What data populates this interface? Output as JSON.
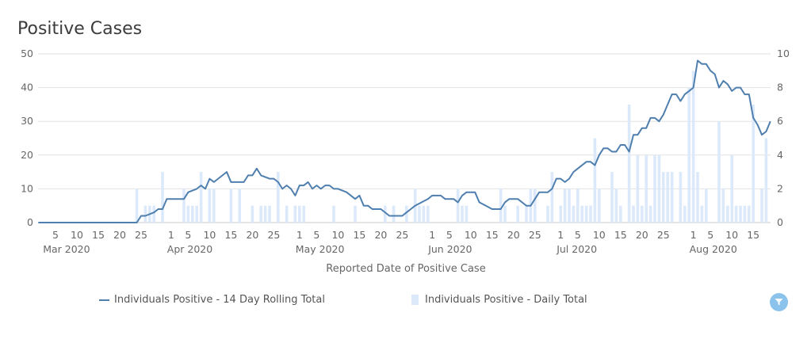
{
  "title": "Positive Cases",
  "filter_icon": "filter-icon",
  "chart_data": {
    "type": "bar+line",
    "title": "Positive Cases",
    "xlabel": "Reported Date of Positive Case",
    "ylabel_left": "",
    "ylabel_right": "",
    "x_range": [
      "2020-03-01",
      "2020-08-19"
    ],
    "ylim_left": [
      0,
      50
    ],
    "ylim_right": [
      0,
      10
    ],
    "left_ticks": [
      "0",
      "10",
      "20",
      "30",
      "40",
      "50"
    ],
    "right_ticks": [
      "0",
      "2",
      "4",
      "6",
      "8",
      "10"
    ],
    "x_ticks": [
      {
        "date": "2020-03-05",
        "label": "5"
      },
      {
        "date": "2020-03-10",
        "label": "10"
      },
      {
        "date": "2020-03-15",
        "label": "15"
      },
      {
        "date": "2020-03-20",
        "label": "20"
      },
      {
        "date": "2020-03-25",
        "label": "25"
      },
      {
        "date": "2020-04-01",
        "label": "1"
      },
      {
        "date": "2020-04-05",
        "label": "5"
      },
      {
        "date": "2020-04-10",
        "label": "10"
      },
      {
        "date": "2020-04-15",
        "label": "15"
      },
      {
        "date": "2020-04-20",
        "label": "20"
      },
      {
        "date": "2020-04-25",
        "label": "25"
      },
      {
        "date": "2020-05-01",
        "label": "1"
      },
      {
        "date": "2020-05-05",
        "label": "5"
      },
      {
        "date": "2020-05-10",
        "label": "10"
      },
      {
        "date": "2020-05-15",
        "label": "15"
      },
      {
        "date": "2020-05-20",
        "label": "20"
      },
      {
        "date": "2020-05-25",
        "label": "25"
      },
      {
        "date": "2020-06-01",
        "label": "1"
      },
      {
        "date": "2020-06-05",
        "label": "5"
      },
      {
        "date": "2020-06-10",
        "label": "10"
      },
      {
        "date": "2020-06-15",
        "label": "15"
      },
      {
        "date": "2020-06-20",
        "label": "20"
      },
      {
        "date": "2020-06-25",
        "label": "25"
      },
      {
        "date": "2020-07-01",
        "label": "1"
      },
      {
        "date": "2020-07-05",
        "label": "5"
      },
      {
        "date": "2020-07-10",
        "label": "10"
      },
      {
        "date": "2020-07-15",
        "label": "15"
      },
      {
        "date": "2020-07-20",
        "label": "20"
      },
      {
        "date": "2020-07-25",
        "label": "25"
      },
      {
        "date": "2020-08-01",
        "label": "1"
      },
      {
        "date": "2020-08-05",
        "label": "5"
      },
      {
        "date": "2020-08-10",
        "label": "10"
      },
      {
        "date": "2020-08-15",
        "label": "15"
      }
    ],
    "month_labels": [
      {
        "date": "2020-03-03",
        "label": "Mar 2020"
      },
      {
        "date": "2020-04-01",
        "label": "Apr 2020"
      },
      {
        "date": "2020-05-01",
        "label": "May 2020"
      },
      {
        "date": "2020-06-01",
        "label": "Jun 2020"
      },
      {
        "date": "2020-07-01",
        "label": "Jul 2020"
      },
      {
        "date": "2020-08-01",
        "label": "Aug 2020"
      }
    ],
    "grid": true,
    "legend_position": "bottom",
    "series": [
      {
        "name": "Individuals Positive - 14 Day Rolling Total",
        "type": "line",
        "axis": "left",
        "color": "#4f7fae",
        "points": [
          [
            "2020-03-01",
            0
          ],
          [
            "2020-03-24",
            0
          ],
          [
            "2020-03-25",
            2
          ],
          [
            "2020-03-26",
            2
          ],
          [
            "2020-03-28",
            3
          ],
          [
            "2020-03-29",
            4
          ],
          [
            "2020-03-30",
            4
          ],
          [
            "2020-03-31",
            7
          ],
          [
            "2020-04-04",
            7
          ],
          [
            "2020-04-05",
            9
          ],
          [
            "2020-04-07",
            10
          ],
          [
            "2020-04-08",
            11
          ],
          [
            "2020-04-09",
            10
          ],
          [
            "2020-04-10",
            13
          ],
          [
            "2020-04-11",
            12
          ],
          [
            "2020-04-13",
            14
          ],
          [
            "2020-04-14",
            15
          ],
          [
            "2020-04-15",
            12
          ],
          [
            "2020-04-18",
            12
          ],
          [
            "2020-04-19",
            14
          ],
          [
            "2020-04-20",
            14
          ],
          [
            "2020-04-21",
            16
          ],
          [
            "2020-04-22",
            14
          ],
          [
            "2020-04-24",
            13
          ],
          [
            "2020-04-25",
            13
          ],
          [
            "2020-04-26",
            12
          ],
          [
            "2020-04-27",
            10
          ],
          [
            "2020-04-28",
            11
          ],
          [
            "2020-04-29",
            10
          ],
          [
            "2020-04-30",
            8
          ],
          [
            "2020-05-01",
            11
          ],
          [
            "2020-05-02",
            11
          ],
          [
            "2020-05-03",
            12
          ],
          [
            "2020-05-04",
            10
          ],
          [
            "2020-05-05",
            11
          ],
          [
            "2020-05-06",
            10
          ],
          [
            "2020-05-07",
            11
          ],
          [
            "2020-05-08",
            11
          ],
          [
            "2020-05-09",
            10
          ],
          [
            "2020-05-10",
            10
          ],
          [
            "2020-05-12",
            9
          ],
          [
            "2020-05-13",
            8
          ],
          [
            "2020-05-14",
            7
          ],
          [
            "2020-05-15",
            8
          ],
          [
            "2020-05-16",
            5
          ],
          [
            "2020-05-17",
            5
          ],
          [
            "2020-05-18",
            4
          ],
          [
            "2020-05-20",
            4
          ],
          [
            "2020-05-22",
            2
          ],
          [
            "2020-05-25",
            2
          ],
          [
            "2020-05-26",
            3
          ],
          [
            "2020-05-27",
            4
          ],
          [
            "2020-05-28",
            5
          ],
          [
            "2020-05-31",
            7
          ],
          [
            "2020-06-01",
            8
          ],
          [
            "2020-06-03",
            8
          ],
          [
            "2020-06-04",
            7
          ],
          [
            "2020-06-06",
            7
          ],
          [
            "2020-06-07",
            6
          ],
          [
            "2020-06-08",
            8
          ],
          [
            "2020-06-09",
            9
          ],
          [
            "2020-06-11",
            9
          ],
          [
            "2020-06-12",
            6
          ],
          [
            "2020-06-15",
            4
          ],
          [
            "2020-06-17",
            4
          ],
          [
            "2020-06-18",
            6
          ],
          [
            "2020-06-19",
            7
          ],
          [
            "2020-06-21",
            7
          ],
          [
            "2020-06-23",
            5
          ],
          [
            "2020-06-24",
            5
          ],
          [
            "2020-06-25",
            7
          ],
          [
            "2020-06-26",
            9
          ],
          [
            "2020-06-28",
            9
          ],
          [
            "2020-06-29",
            10
          ],
          [
            "2020-06-30",
            13
          ],
          [
            "2020-07-01",
            13
          ],
          [
            "2020-07-02",
            12
          ],
          [
            "2020-07-03",
            13
          ],
          [
            "2020-07-04",
            15
          ],
          [
            "2020-07-05",
            16
          ],
          [
            "2020-07-07",
            18
          ],
          [
            "2020-07-08",
            18
          ],
          [
            "2020-07-09",
            17
          ],
          [
            "2020-07-10",
            20
          ],
          [
            "2020-07-11",
            22
          ],
          [
            "2020-07-12",
            22
          ],
          [
            "2020-07-13",
            21
          ],
          [
            "2020-07-14",
            21
          ],
          [
            "2020-07-15",
            23
          ],
          [
            "2020-07-16",
            23
          ],
          [
            "2020-07-17",
            21
          ],
          [
            "2020-07-18",
            26
          ],
          [
            "2020-07-19",
            26
          ],
          [
            "2020-07-20",
            28
          ],
          [
            "2020-07-21",
            28
          ],
          [
            "2020-07-22",
            31
          ],
          [
            "2020-07-23",
            31
          ],
          [
            "2020-07-24",
            30
          ],
          [
            "2020-07-25",
            32
          ],
          [
            "2020-07-26",
            35
          ],
          [
            "2020-07-27",
            38
          ],
          [
            "2020-07-28",
            38
          ],
          [
            "2020-07-29",
            36
          ],
          [
            "2020-07-30",
            38
          ],
          [
            "2020-07-31",
            39
          ],
          [
            "2020-08-01",
            40
          ],
          [
            "2020-08-02",
            48
          ],
          [
            "2020-08-03",
            47
          ],
          [
            "2020-08-04",
            47
          ],
          [
            "2020-08-05",
            45
          ],
          [
            "2020-08-06",
            44
          ],
          [
            "2020-08-07",
            40
          ],
          [
            "2020-08-08",
            42
          ],
          [
            "2020-08-09",
            41
          ],
          [
            "2020-08-10",
            39
          ],
          [
            "2020-08-11",
            40
          ],
          [
            "2020-08-12",
            40
          ],
          [
            "2020-08-13",
            38
          ],
          [
            "2020-08-14",
            38
          ],
          [
            "2020-08-15",
            31
          ],
          [
            "2020-08-16",
            29
          ],
          [
            "2020-08-17",
            26
          ],
          [
            "2020-08-18",
            27
          ],
          [
            "2020-08-19",
            30
          ]
        ]
      },
      {
        "name": "Individuals Positive - Daily Total",
        "type": "bar",
        "axis": "right",
        "color": "#dbe9fb",
        "points": [
          [
            "2020-03-24",
            2
          ],
          [
            "2020-03-26",
            1
          ],
          [
            "2020-03-27",
            1
          ],
          [
            "2020-03-28",
            1
          ],
          [
            "2020-03-30",
            3
          ],
          [
            "2020-04-04",
            2
          ],
          [
            "2020-04-05",
            1
          ],
          [
            "2020-04-06",
            1
          ],
          [
            "2020-04-07",
            1
          ],
          [
            "2020-04-08",
            3
          ],
          [
            "2020-04-10",
            2
          ],
          [
            "2020-04-11",
            2
          ],
          [
            "2020-04-15",
            2
          ],
          [
            "2020-04-17",
            2
          ],
          [
            "2020-04-20",
            1
          ],
          [
            "2020-04-22",
            1
          ],
          [
            "2020-04-23",
            1
          ],
          [
            "2020-04-24",
            1
          ],
          [
            "2020-04-26",
            3
          ],
          [
            "2020-04-28",
            1
          ],
          [
            "2020-04-30",
            1
          ],
          [
            "2020-05-01",
            1
          ],
          [
            "2020-05-02",
            1
          ],
          [
            "2020-05-09",
            1
          ],
          [
            "2020-05-14",
            1
          ],
          [
            "2020-05-21",
            1
          ],
          [
            "2020-05-23",
            1
          ],
          [
            "2020-05-26",
            1
          ],
          [
            "2020-05-28",
            2
          ],
          [
            "2020-05-29",
            1
          ],
          [
            "2020-05-30",
            1
          ],
          [
            "2020-05-31",
            1
          ],
          [
            "2020-06-07",
            2
          ],
          [
            "2020-06-08",
            1
          ],
          [
            "2020-06-09",
            1
          ],
          [
            "2020-06-17",
            2
          ],
          [
            "2020-06-18",
            1
          ],
          [
            "2020-06-21",
            1
          ],
          [
            "2020-06-23",
            1
          ],
          [
            "2020-06-24",
            2
          ],
          [
            "2020-06-25",
            2
          ],
          [
            "2020-06-28",
            1
          ],
          [
            "2020-06-29",
            3
          ],
          [
            "2020-07-01",
            1
          ],
          [
            "2020-07-02",
            2
          ],
          [
            "2020-07-03",
            2
          ],
          [
            "2020-07-04",
            1
          ],
          [
            "2020-07-05",
            2
          ],
          [
            "2020-07-06",
            1
          ],
          [
            "2020-07-07",
            1
          ],
          [
            "2020-07-08",
            1
          ],
          [
            "2020-07-09",
            5
          ],
          [
            "2020-07-10",
            2
          ],
          [
            "2020-07-13",
            3
          ],
          [
            "2020-07-14",
            2
          ],
          [
            "2020-07-15",
            1
          ],
          [
            "2020-07-17",
            7
          ],
          [
            "2020-07-18",
            1
          ],
          [
            "2020-07-19",
            4
          ],
          [
            "2020-07-20",
            1
          ],
          [
            "2020-07-21",
            4
          ],
          [
            "2020-07-22",
            1
          ],
          [
            "2020-07-23",
            4
          ],
          [
            "2020-07-24",
            4
          ],
          [
            "2020-07-25",
            3
          ],
          [
            "2020-07-26",
            3
          ],
          [
            "2020-07-27",
            3
          ],
          [
            "2020-07-29",
            3
          ],
          [
            "2020-07-30",
            1
          ],
          [
            "2020-07-31",
            8
          ],
          [
            "2020-08-01",
            9
          ],
          [
            "2020-08-02",
            3
          ],
          [
            "2020-08-03",
            1
          ],
          [
            "2020-08-04",
            2
          ],
          [
            "2020-08-07",
            6
          ],
          [
            "2020-08-08",
            2
          ],
          [
            "2020-08-09",
            1
          ],
          [
            "2020-08-10",
            4
          ],
          [
            "2020-08-11",
            1
          ],
          [
            "2020-08-12",
            1
          ],
          [
            "2020-08-13",
            1
          ],
          [
            "2020-08-14",
            1
          ],
          [
            "2020-08-15",
            7
          ],
          [
            "2020-08-17",
            2
          ],
          [
            "2020-08-18",
            5
          ]
        ]
      }
    ]
  }
}
